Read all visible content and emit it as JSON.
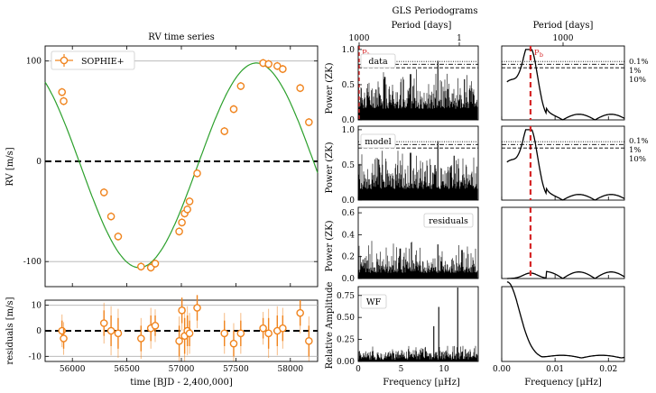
{
  "chart_data": [
    {
      "id": "rv",
      "type": "scatter",
      "title": "RV time series",
      "xlabel": "",
      "ylabel": "RV [m/s]",
      "xlim": [
        55750,
        58250
      ],
      "ylim": [
        -125,
        115
      ],
      "xticks": [
        56000,
        56500,
        57000,
        57500,
        58000
      ],
      "yticks": [
        100,
        0,
        -100
      ],
      "legend": "SOPHIE+",
      "series": [
        {
          "name": "SOPHIE+",
          "x": [
            55905,
            55920,
            56290,
            56355,
            56420,
            56630,
            56720,
            56760,
            56980,
            57005,
            57030,
            57055,
            57075,
            57145,
            57395,
            57480,
            57545,
            57750,
            57800,
            57880,
            57930,
            58090,
            58170
          ],
          "y": [
            69,
            60,
            -31,
            -55,
            -75,
            -105,
            -106,
            -102,
            -70,
            -61,
            -52,
            -48,
            -40,
            -12,
            30,
            52,
            75,
            98,
            97,
            95,
            92,
            73,
            39
          ]
        }
      ],
      "model": {
        "amplitude": 102,
        "offset": -4,
        "period_days": 2150,
        "phase_ref": 56075
      }
    },
    {
      "id": "residuals",
      "type": "scatter",
      "xlabel": "time [BJD - 2,400,000]",
      "ylabel": "residuals [m/s]",
      "xlim": [
        55750,
        58250
      ],
      "ylim": [
        -12,
        12
      ],
      "xticks": [
        56000,
        56500,
        57000,
        57500,
        58000
      ],
      "yticks": [
        10,
        0,
        -10
      ],
      "series": [
        {
          "x": [
            55905,
            55920,
            56290,
            56355,
            56420,
            56630,
            56720,
            56760,
            56980,
            57005,
            57030,
            57055,
            57075,
            57145,
            57395,
            57480,
            57545,
            57750,
            57800,
            57880,
            57930,
            58090,
            58170
          ],
          "y": [
            0,
            -3,
            3,
            0,
            -1,
            -3,
            1,
            2,
            -4,
            8,
            -2,
            0,
            -1,
            9,
            -1,
            -5,
            -1,
            1,
            -1,
            0,
            1,
            7,
            -4
          ],
          "err": [
            4,
            4,
            5,
            6,
            6,
            5,
            5,
            4,
            6,
            5,
            7,
            6,
            5,
            5,
            5,
            5,
            5,
            4,
            6,
            6,
            5,
            5,
            6
          ]
        }
      ]
    },
    {
      "id": "gls",
      "type": "line",
      "super_title": "GLS Periodograms",
      "period_label": "Period [days]",
      "period_ticks": [
        "1000",
        "1"
      ],
      "xlabel": "Frequency [μHz]",
      "xlim": [
        0,
        14
      ],
      "xticks": [
        0,
        5,
        10
      ],
      "panels": [
        {
          "name": "data",
          "ylabel": "Power (ZK)",
          "ylim": [
            0,
            1.05
          ],
          "yticks": [
            "1.0",
            "0.5",
            "0.0"
          ],
          "marker": "P_b"
        },
        {
          "name": "model",
          "ylabel": "Power (ZK)",
          "ylim": [
            0,
            1.05
          ],
          "yticks": [
            "1.0",
            "0.5",
            "0.0"
          ]
        },
        {
          "name": "residuals",
          "ylabel": "Power (ZK)",
          "ylim": [
            0,
            0.65
          ],
          "yticks": [
            "0.6",
            "0.4",
            "0.2",
            "0.0"
          ]
        },
        {
          "name": "WF",
          "ylabel": "Relative Amplitude",
          "ylim": [
            0,
            0.85
          ],
          "yticks": [
            "0.75",
            "0.50",
            "0.25",
            "0.00"
          ]
        }
      ],
      "fap_levels": [
        "0.1%",
        "1%",
        "10%"
      ]
    },
    {
      "id": "gls-zoom",
      "type": "line",
      "period_label": "Period [days]",
      "period_ticks": [
        "1000"
      ],
      "xlabel": "Frequency [μHz]",
      "xlim": [
        0,
        0.023
      ],
      "xticks": [
        "0.00",
        "0.01",
        "0.02"
      ],
      "peak_frequency": 0.0054,
      "marker": "P_b"
    }
  ]
}
